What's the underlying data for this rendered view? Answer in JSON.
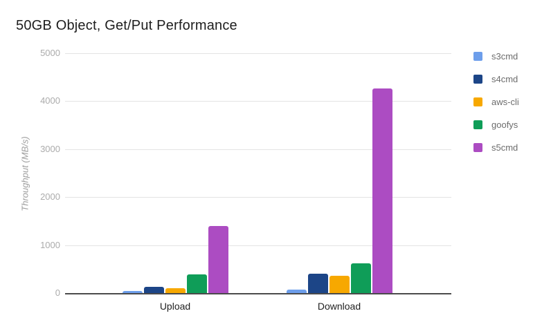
{
  "header": {
    "title": "50GB Object, Get/Put Performance"
  },
  "chart_data": {
    "type": "bar",
    "title": "50GB Object, Get/Put Performance",
    "categories": [
      "Upload",
      "Download"
    ],
    "series": [
      {
        "name": "s3cmd",
        "color": "#6d9eeb",
        "values": [
          50,
          75
        ]
      },
      {
        "name": "s4cmd",
        "color": "#1c4587",
        "values": [
          135,
          400
        ]
      },
      {
        "name": "aws-cli",
        "color": "#f7a800",
        "values": [
          100,
          355
        ]
      },
      {
        "name": "goofys",
        "color": "#0f9d58",
        "values": [
          390,
          620
        ]
      },
      {
        "name": "s5cmd",
        "color": "#ac4cc2",
        "values": [
          1400,
          4270
        ]
      }
    ],
    "xlabel": "",
    "ylabel": "Throughput (MB/s)",
    "ylim": [
      0,
      5000
    ],
    "yticks": [
      0,
      1000,
      2000,
      3000,
      4000,
      5000
    ],
    "grid": true,
    "legend_position": "right",
    "background": "#ffffff"
  }
}
